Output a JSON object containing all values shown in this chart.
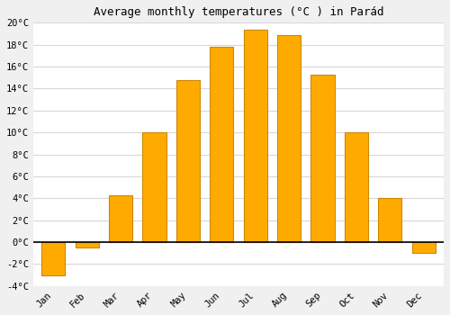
{
  "months": [
    "Jan",
    "Feb",
    "Mar",
    "Apr",
    "May",
    "Jun",
    "Jul",
    "Aug",
    "Sep",
    "Oct",
    "Nov",
    "Dec"
  ],
  "values": [
    -3.0,
    -0.5,
    4.3,
    10.0,
    14.8,
    17.8,
    19.4,
    18.9,
    15.3,
    10.0,
    4.0,
    -1.0
  ],
  "bar_color": "#FFAA00",
  "bar_edge_color": "#CC8800",
  "title": "Average monthly temperatures (°C ) in Parád",
  "ylim": [
    -4,
    20
  ],
  "yticks": [
    -4,
    -2,
    0,
    2,
    4,
    6,
    8,
    10,
    12,
    14,
    16,
    18,
    20
  ],
  "plot_bg_color": "#ffffff",
  "fig_bg_color": "#f0f0f0",
  "grid_color": "#d8d8d8",
  "title_fontsize": 9,
  "tick_fontsize": 7.5,
  "bar_width": 0.7
}
